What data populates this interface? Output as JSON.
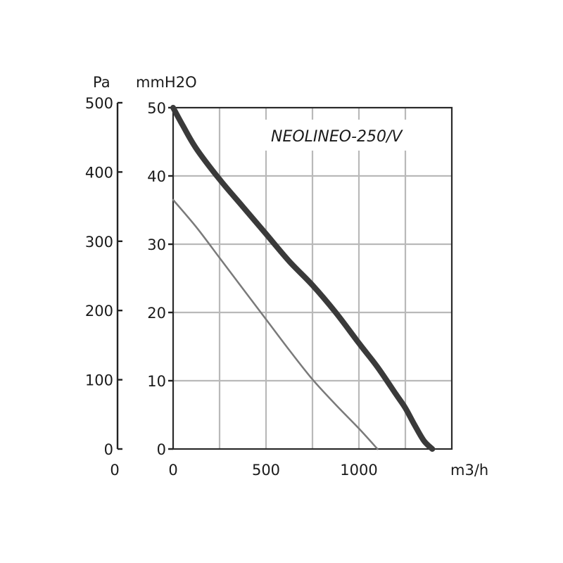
{
  "chart_data": {
    "type": "line",
    "title": "NEOLINEO-250/V",
    "xlabel": "m3/h",
    "ylabel_left": "Pa",
    "ylabel_right": "mmH2O",
    "xlim": [
      0,
      1500
    ],
    "ylim": [
      0,
      50
    ],
    "pa_lim": [
      0,
      500
    ],
    "x_ticks": [
      "0",
      "500",
      "1000"
    ],
    "x_tick_values": [
      0,
      500,
      1000
    ],
    "x_origin_label": "0",
    "y_ticks": [
      "0",
      "10",
      "20",
      "30",
      "40",
      "50"
    ],
    "y_tick_values": [
      0,
      10,
      20,
      30,
      40,
      50
    ],
    "pa_ticks": [
      "0",
      "100",
      "200",
      "300",
      "400",
      "500"
    ],
    "pa_tick_values": [
      0,
      100,
      200,
      300,
      400,
      500
    ],
    "grid": true,
    "x_grid_values": [
      250,
      500,
      750,
      1000,
      1250
    ],
    "y_grid_values": [
      10,
      20,
      30,
      40
    ],
    "series": [
      {
        "color": "#3a3a3a",
        "width": 8,
        "x": [
          0,
          50,
          125,
          250,
          375,
          500,
          625,
          750,
          875,
          1000,
          1100,
          1200,
          1250,
          1300,
          1350,
          1395
        ],
        "y": [
          50,
          47.5,
          44,
          39.5,
          35.5,
          31.5,
          27.5,
          24,
          20,
          15.5,
          12,
          8,
          6,
          3.5,
          1.2,
          0
        ]
      },
      {
        "color": "#7a7a7a",
        "width": 2.5,
        "x": [
          0,
          125,
          250,
          375,
          500,
          625,
          750,
          875,
          1000,
          1100
        ],
        "y": [
          36.5,
          32.5,
          28,
          23.5,
          19,
          14.5,
          10.2,
          6.5,
          3,
          0
        ]
      }
    ]
  }
}
